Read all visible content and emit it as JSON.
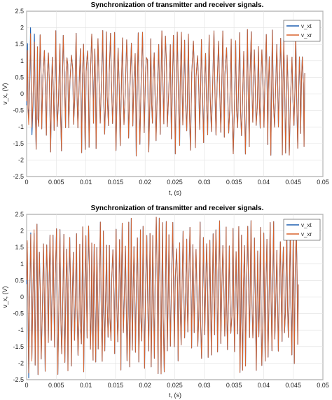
{
  "chart_data": [
    {
      "type": "line",
      "title": "Synchronization of transmitter and receiver signals.",
      "xlabel": "t, (s)",
      "ylabel": "v_x, (V)",
      "xlim": [
        0,
        0.05
      ],
      "ylim": [
        -2.5,
        2.5
      ],
      "x_ticks": [
        "0",
        "0.005",
        "0.01",
        "0.015",
        "0.02",
        "0.025",
        "0.03",
        "0.035",
        "0.04",
        "0.045",
        "0.05"
      ],
      "y_ticks": [
        "-2.5",
        "-2",
        "-1.5",
        "-1",
        "-0.5",
        "0",
        "0.5",
        "1",
        "1.5",
        "2",
        "2.5"
      ],
      "grid": true,
      "legend_position": "top-right",
      "series": [
        {
          "name": "v_xt",
          "color": "#1f5fb0",
          "x_end": 0.047
        },
        {
          "name": "v_xr",
          "color": "#d9622b",
          "x_end": 0.047
        }
      ],
      "waveform": {
        "x_end": 0.047,
        "cycle": 0.00118,
        "amplitude": [
          -1.9,
          1.95
        ],
        "mean_level": 0.1
      }
    },
    {
      "type": "line",
      "title": "Synchronization of transmitter and receiver signals.",
      "xlabel": "t, (s)",
      "ylabel": "v_x, (V)",
      "xlim": [
        0,
        0.05
      ],
      "ylim": [
        -2.5,
        2.5
      ],
      "x_ticks": [
        "0",
        "0.005",
        "0.01",
        "0.015",
        "0.02",
        "0.025",
        "0.03",
        "0.035",
        "0.04",
        "0.045",
        "0.05"
      ],
      "y_ticks": [
        "-2.5",
        "-2",
        "-1.5",
        "-1",
        "-0.5",
        "0",
        "0.5",
        "1",
        "1.5",
        "2",
        "2.5"
      ],
      "grid": true,
      "legend_position": "top-right",
      "series": [
        {
          "name": "v_xt",
          "color": "#1f5fb0",
          "x_end": 0.046
        },
        {
          "name": "v_xr",
          "color": "#d9622b",
          "x_end": 0.046
        }
      ],
      "waveform": {
        "x_end": 0.046,
        "cycle": 0.00098,
        "amplitude": [
          -2.35,
          2.45
        ],
        "mean_level": 0.0
      }
    }
  ]
}
